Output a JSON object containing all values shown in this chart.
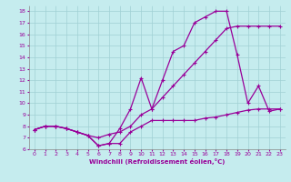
{
  "xlabel": "Windchill (Refroidissement éolien,°C)",
  "bg_color": "#c5ecee",
  "line_color": "#990099",
  "grid_color": "#a0d0d4",
  "curve1_x": [
    0,
    1,
    2,
    3,
    4,
    5,
    6,
    7,
    8,
    9,
    10,
    11,
    12,
    13,
    14,
    15,
    16,
    17,
    18,
    19,
    20,
    21,
    22,
    23
  ],
  "curve1_y": [
    7.7,
    8.0,
    8.0,
    7.8,
    7.5,
    7.2,
    6.3,
    6.5,
    7.8,
    9.5,
    12.2,
    9.5,
    12.0,
    14.5,
    15.0,
    17.0,
    17.5,
    18.0,
    18.0,
    14.2,
    10.0,
    11.5,
    9.3,
    9.5
  ],
  "curve2_x": [
    0,
    1,
    2,
    3,
    4,
    5,
    6,
    7,
    8,
    9,
    10,
    11,
    12,
    13,
    14,
    15,
    16,
    17,
    18,
    19,
    20,
    21,
    22,
    23
  ],
  "curve2_y": [
    7.7,
    8.0,
    8.0,
    7.8,
    7.5,
    7.2,
    7.0,
    7.3,
    7.5,
    8.0,
    9.0,
    9.5,
    10.5,
    11.5,
    12.5,
    13.5,
    14.5,
    15.5,
    16.5,
    16.7,
    16.7,
    16.7,
    16.7,
    16.7
  ],
  "curve3_x": [
    0,
    1,
    2,
    3,
    4,
    5,
    6,
    7,
    8,
    9,
    10,
    11,
    12,
    13,
    14,
    15,
    16,
    17,
    18,
    19,
    20,
    21,
    22,
    23
  ],
  "curve3_y": [
    7.7,
    8.0,
    8.0,
    7.8,
    7.5,
    7.2,
    6.3,
    6.5,
    6.5,
    7.5,
    8.0,
    8.5,
    8.5,
    8.5,
    8.5,
    8.5,
    8.7,
    8.8,
    9.0,
    9.2,
    9.4,
    9.5,
    9.5,
    9.5
  ],
  "ylim": [
    6,
    18.5
  ],
  "xlim": [
    -0.5,
    23.5
  ],
  "yticks": [
    6,
    7,
    8,
    9,
    10,
    11,
    12,
    13,
    14,
    15,
    16,
    17,
    18
  ],
  "xticks": [
    0,
    1,
    2,
    3,
    4,
    5,
    6,
    7,
    8,
    9,
    10,
    11,
    12,
    13,
    14,
    15,
    16,
    17,
    18,
    19,
    20,
    21,
    22,
    23
  ]
}
